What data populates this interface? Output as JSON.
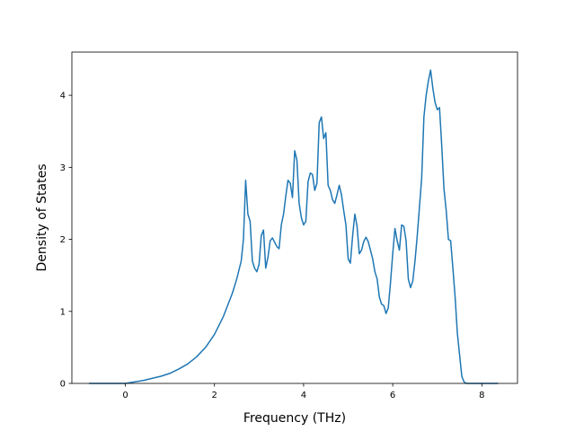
{
  "chart_data": {
    "type": "line",
    "title": "",
    "xlabel": "Frequency (THz)",
    "ylabel": "Density of States",
    "xlim": [
      -1.2,
      8.8
    ],
    "ylim": [
      0,
      4.6
    ],
    "xticks": [
      0,
      2,
      4,
      6,
      8
    ],
    "yticks": [
      0,
      1,
      2,
      3,
      4
    ],
    "grid": false,
    "legend": "none",
    "colors": {
      "line": "#1f77b4",
      "axes": "#000000",
      "background": "#ffffff"
    },
    "series": [
      {
        "x": [
          -0.8,
          -0.4,
          0.0,
          0.2,
          0.4,
          0.6,
          0.8,
          1.0,
          1.2,
          1.4,
          1.6,
          1.8,
          2.0,
          2.2,
          2.4,
          2.5,
          2.6,
          2.65,
          2.7,
          2.75,
          2.8,
          2.85,
          2.9,
          2.95,
          3.0,
          3.05,
          3.1,
          3.15,
          3.2,
          3.25,
          3.3,
          3.4,
          3.45,
          3.5,
          3.55,
          3.6,
          3.65,
          3.7,
          3.75,
          3.8,
          3.85,
          3.9,
          3.95,
          4.0,
          4.05,
          4.1,
          4.15,
          4.2,
          4.25,
          4.3,
          4.35,
          4.4,
          4.45,
          4.5,
          4.55,
          4.6,
          4.65,
          4.7,
          4.75,
          4.8,
          4.85,
          4.9,
          4.95,
          5.0,
          5.05,
          5.1,
          5.15,
          5.2,
          5.25,
          5.3,
          5.35,
          5.4,
          5.45,
          5.5,
          5.55,
          5.6,
          5.65,
          5.7,
          5.75,
          5.8,
          5.85,
          5.9,
          5.95,
          6.0,
          6.05,
          6.1,
          6.15,
          6.2,
          6.25,
          6.3,
          6.35,
          6.4,
          6.45,
          6.5,
          6.55,
          6.6,
          6.65,
          6.7,
          6.75,
          6.8,
          6.85,
          6.9,
          6.95,
          7.0,
          7.05,
          7.1,
          7.15,
          7.2,
          7.25,
          7.3,
          7.35,
          7.4,
          7.45,
          7.5,
          7.55,
          7.6,
          7.65,
          7.7,
          8.0,
          8.35
        ],
        "y": [
          0.0,
          0.0,
          0.0,
          0.02,
          0.04,
          0.07,
          0.1,
          0.14,
          0.2,
          0.27,
          0.37,
          0.5,
          0.68,
          0.93,
          1.25,
          1.45,
          1.7,
          2.0,
          2.82,
          2.35,
          2.25,
          1.7,
          1.6,
          1.55,
          1.65,
          2.05,
          2.13,
          1.6,
          1.75,
          1.98,
          2.02,
          1.9,
          1.87,
          2.2,
          2.35,
          2.6,
          2.82,
          2.78,
          2.58,
          3.23,
          3.1,
          2.5,
          2.3,
          2.2,
          2.25,
          2.8,
          2.92,
          2.9,
          2.68,
          2.78,
          3.62,
          3.7,
          3.4,
          3.48,
          2.75,
          2.68,
          2.55,
          2.5,
          2.62,
          2.75,
          2.62,
          2.4,
          2.2,
          1.73,
          1.67,
          2.05,
          2.35,
          2.18,
          1.8,
          1.85,
          1.97,
          2.03,
          1.97,
          1.85,
          1.73,
          1.55,
          1.45,
          1.2,
          1.1,
          1.08,
          0.97,
          1.05,
          1.4,
          1.8,
          2.15,
          1.98,
          1.85,
          2.2,
          2.18,
          1.98,
          1.45,
          1.33,
          1.42,
          1.7,
          2.05,
          2.45,
          2.85,
          3.7,
          4.0,
          4.2,
          4.35,
          4.1,
          3.9,
          3.8,
          3.83,
          3.3,
          2.7,
          2.4,
          2.0,
          1.98,
          1.6,
          1.2,
          0.7,
          0.4,
          0.1,
          0.02,
          0.0,
          0.0,
          0.0,
          0.0
        ]
      }
    ]
  }
}
